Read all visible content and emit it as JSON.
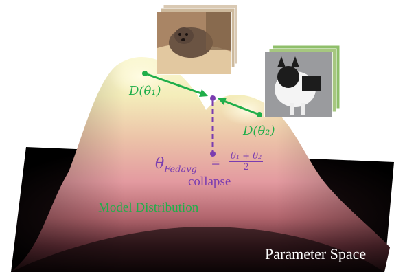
{
  "labels": {
    "d_theta1": "D(θ₁)",
    "d_theta2": "D(θ₂)",
    "fedavg_symbol": "θ",
    "fedavg_sub": "Fedavg",
    "equals": "=",
    "fraction_num": "θ₁ + θ₂",
    "fraction_den": "2",
    "collapse": "collapse",
    "model_distribution": "Model Distribution",
    "parameter_space": "Parameter Space"
  },
  "colors": {
    "green": "#1fae4a",
    "purple": "#7a3db0",
    "background": "#000000",
    "peak": "#fbf7c8"
  },
  "images": [
    {
      "name": "dog-photo-terrier"
    },
    {
      "name": "dog-photo-french-bulldog"
    }
  ]
}
